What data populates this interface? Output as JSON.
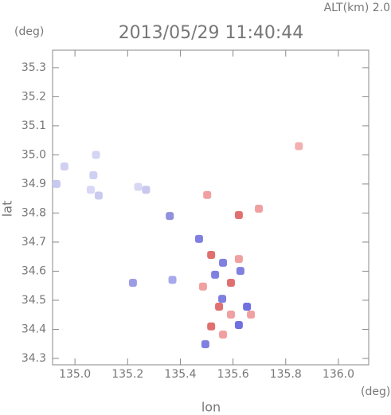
{
  "chart_data": {
    "type": "scatter",
    "title": "2013/05/29 11:40:44",
    "subtitle": "ALT(km) 2.0",
    "y_unit": "(deg)",
    "x_unit": "(deg)",
    "xlabel": "lon",
    "ylabel": "lat",
    "x": [
      134.93,
      134.96,
      135.08,
      135.07,
      135.09,
      135.06,
      135.24,
      135.27,
      135.36,
      135.22,
      135.37,
      135.85,
      135.502,
      135.622,
      135.698,
      135.471,
      135.517,
      135.562,
      135.622,
      135.532,
      135.592,
      135.628,
      135.486,
      135.559,
      135.547,
      135.653,
      135.592,
      135.517,
      135.622,
      135.562,
      135.495,
      135.668
    ],
    "y": [
      34.9,
      34.96,
      35.0,
      34.93,
      34.86,
      34.88,
      34.89,
      34.88,
      34.79,
      34.56,
      34.57,
      35.03,
      34.862,
      34.793,
      34.815,
      34.711,
      34.656,
      34.629,
      34.642,
      34.588,
      34.56,
      34.601,
      34.547,
      34.505,
      34.478,
      34.478,
      34.451,
      34.41,
      34.415,
      34.382,
      34.349,
      34.451
    ],
    "colors": [
      "#c8c8f0",
      "#d0d0f2",
      "#d4d4f4",
      "#d0d0f2",
      "#cacaf0",
      "#d8d8f6",
      "#d8d8f4",
      "#c8c8ee",
      "#9090e0",
      "#9c9ce6",
      "#a8a8ec",
      "#f2b0b0",
      "#f0a0a0",
      "#e07070",
      "#f0a0a0",
      "#8080e0",
      "#e07070",
      "#8080e0",
      "#f0a0a0",
      "#8080e0",
      "#e07070",
      "#8080e0",
      "#f0a0a0",
      "#8080e0",
      "#e07070",
      "#7070e0",
      "#f0a0a0",
      "#e07070",
      "#7070e0",
      "#f0a0a0",
      "#8080e0",
      "#f0a0a0"
    ],
    "xlim": [
      134.915,
      136.115
    ],
    "ylim": [
      34.278,
      35.36
    ],
    "xticks": [
      {
        "value": 135,
        "label": "135.0"
      },
      135.2,
      135.4,
      135.6,
      135.8,
      {
        "value": 136,
        "label": "136.0"
      }
    ],
    "yticks": [
      34.3,
      34.4,
      34.5,
      34.6,
      34.7,
      34.8,
      34.9,
      {
        "value": 35,
        "label": "35.0"
      },
      35.1,
      35.2,
      35.3
    ]
  }
}
